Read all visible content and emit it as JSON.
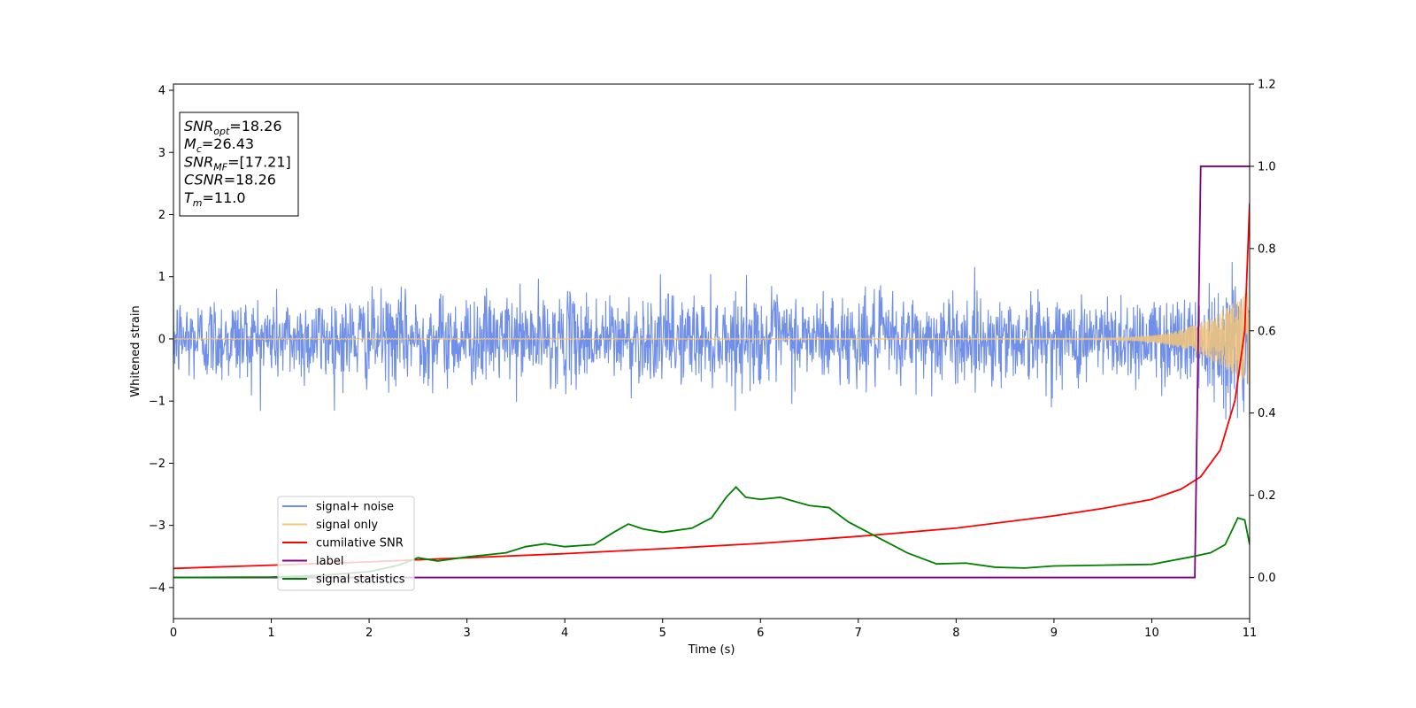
{
  "chart_data": {
    "type": "line",
    "xlabel": "Time (s)",
    "ylabel": "Whitened strain",
    "xlim": [
      0,
      11
    ],
    "ylim_left": [
      -4.5,
      4.1
    ],
    "ylim_right": [
      -0.1,
      1.2
    ],
    "x_ticks": [
      0,
      1,
      2,
      3,
      4,
      5,
      6,
      7,
      8,
      9,
      10,
      11
    ],
    "y_ticks_left": [
      -4,
      -3,
      -2,
      -1,
      0,
      1,
      2,
      3,
      4
    ],
    "y_ticks_right": [
      0.0,
      0.2,
      0.4,
      0.6,
      0.8,
      1.0,
      1.2
    ],
    "grid": false,
    "legend_position": "lower-left",
    "annotation": [
      {
        "base": "SNR",
        "sub": "opt",
        "value": "=18.26"
      },
      {
        "base": "M",
        "sub": "c",
        "value": "=26.43"
      },
      {
        "base": "SNR",
        "sub": "MF",
        "value": "=[17.21]"
      },
      {
        "base": "CSNR",
        "sub": "",
        "value": "=18.26"
      },
      {
        "base": "T",
        "sub": "m",
        "value": "=11.0"
      }
    ],
    "series": [
      {
        "name": "signal+ noise",
        "color": "#6f8fe8",
        "axis": "left",
        "kind": "noise",
        "amplitude_std": 0.35,
        "peak_range": [
          -1.15,
          1.15
        ]
      },
      {
        "name": "signal only",
        "color": "#f5c77a",
        "axis": "left",
        "kind": "chirp",
        "end_amplitude": 0.9,
        "end_time": 11.0
      },
      {
        "name": "cumilative SNR",
        "color": "#ff0000",
        "axis": "right",
        "x": [
          0,
          1,
          2,
          3,
          4,
          5,
          6,
          7,
          8,
          9,
          9.5,
          10,
          10.3,
          10.5,
          10.7,
          10.85,
          10.95,
          11
        ],
        "y": [
          0.022,
          0.03,
          0.038,
          0.048,
          0.058,
          0.07,
          0.083,
          0.1,
          0.12,
          0.15,
          0.168,
          0.19,
          0.215,
          0.245,
          0.31,
          0.43,
          0.6,
          0.91
        ]
      },
      {
        "name": "label",
        "color": "#800080",
        "axis": "right",
        "x": [
          0,
          10.44,
          10.5,
          11
        ],
        "y": [
          0,
          0,
          1,
          1
        ]
      },
      {
        "name": "signal statistics",
        "color": "#008000",
        "axis": "right",
        "x": [
          0,
          1,
          1.5,
          2,
          2.3,
          2.5,
          2.7,
          3,
          3.4,
          3.6,
          3.8,
          4,
          4.3,
          4.5,
          4.65,
          4.8,
          5,
          5.3,
          5.5,
          5.65,
          5.75,
          5.85,
          6,
          6.2,
          6.35,
          6.5,
          6.7,
          6.9,
          7.1,
          7.3,
          7.5,
          7.8,
          8.1,
          8.4,
          8.7,
          9,
          9.5,
          10,
          10.4,
          10.6,
          10.75,
          10.88,
          10.95,
          11
        ],
        "y": [
          0.0,
          0.001,
          0.005,
          0.014,
          0.03,
          0.048,
          0.04,
          0.05,
          0.06,
          0.075,
          0.082,
          0.075,
          0.08,
          0.11,
          0.13,
          0.118,
          0.11,
          0.12,
          0.145,
          0.195,
          0.22,
          0.195,
          0.19,
          0.195,
          0.185,
          0.175,
          0.17,
          0.135,
          0.11,
          0.085,
          0.06,
          0.033,
          0.035,
          0.025,
          0.023,
          0.028,
          0.03,
          0.032,
          0.05,
          0.06,
          0.08,
          0.145,
          0.14,
          0.08
        ]
      }
    ]
  }
}
